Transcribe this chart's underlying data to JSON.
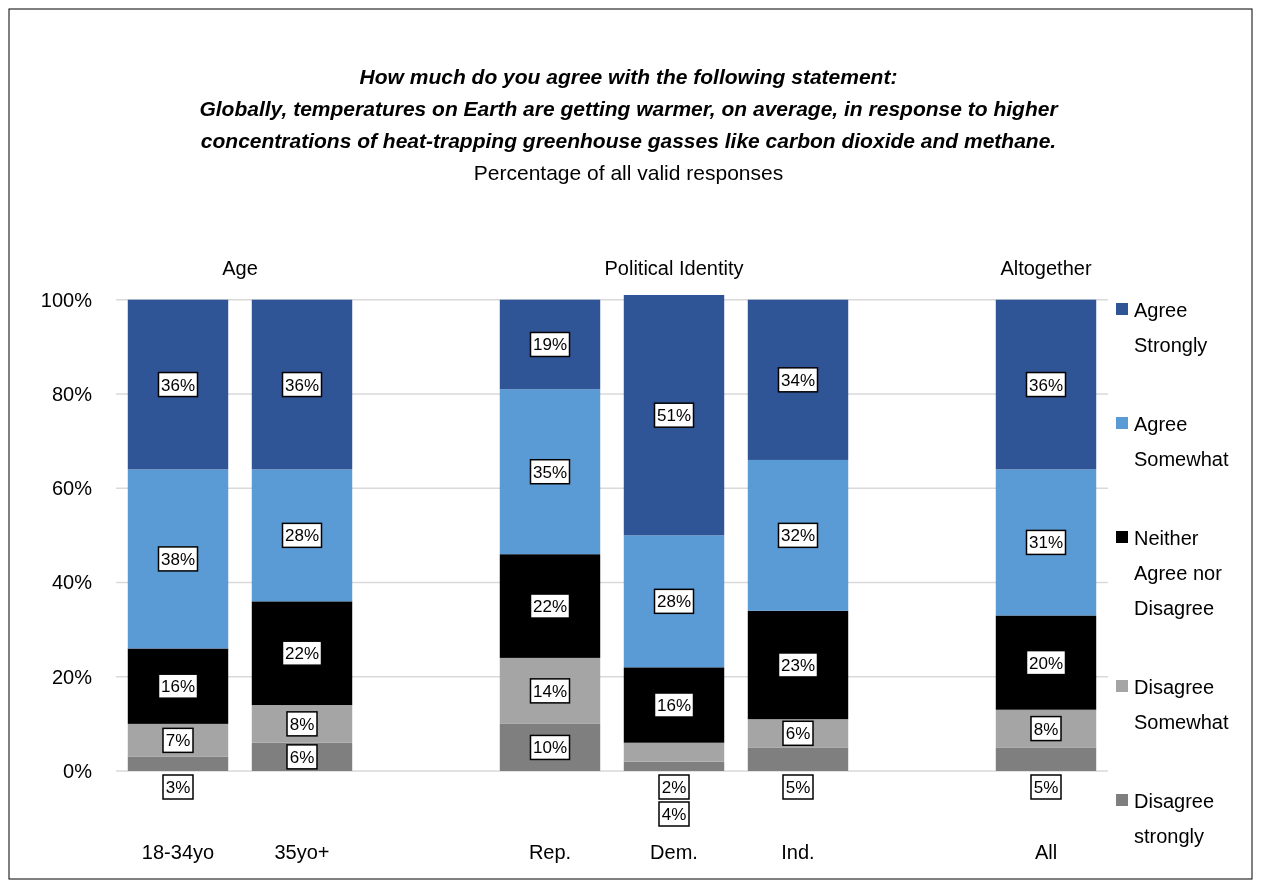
{
  "chart_data": {
    "type": "bar",
    "stacked": true,
    "title": "How much do you agree with the following statement:\nGlobally, temperatures on Earth are getting warmer, on average, in response to higher concentrations of heat-trapping greenhouse gasses like carbon dioxide and methane.",
    "subtitle": "Percentage of all valid responses",
    "annotations": [
      "Age",
      "Political Identity",
      "Altogether"
    ],
    "categories": [
      "18-34yo",
      "35yo+",
      null,
      "Rep.",
      "Dem.",
      "Ind.",
      null,
      "All"
    ],
    "series": [
      {
        "name": "Disagree strongly",
        "color": "#7f7f7f",
        "values": [
          3,
          6,
          null,
          10,
          2,
          5,
          null,
          5
        ],
        "value_labels": [
          "3%",
          "6%",
          null,
          "10%",
          "2%",
          "5%",
          null,
          "5%"
        ]
      },
      {
        "name": "Disagree Somewhat",
        "color": "#a5a5a5",
        "values": [
          7,
          8,
          null,
          14,
          4,
          6,
          null,
          8
        ],
        "value_labels": [
          "7%",
          "8%",
          null,
          "14%",
          "4%",
          "6%",
          null,
          "8%"
        ]
      },
      {
        "name": "Neither Agree nor Disagree",
        "color": "#000000",
        "values": [
          16,
          22,
          null,
          22,
          16,
          23,
          null,
          20
        ],
        "value_labels": [
          "16%",
          "22%",
          null,
          "22%",
          "16%",
          "23%",
          null,
          "20%"
        ]
      },
      {
        "name": "Agree Somewhat",
        "color": "#5b9bd5",
        "values": [
          38,
          28,
          null,
          35,
          28,
          32,
          null,
          31
        ],
        "value_labels": [
          "38%",
          "28%",
          null,
          "35%",
          "28%",
          "32%",
          null,
          "31%"
        ]
      },
      {
        "name": "Agree Strongly",
        "color": "#2f5597",
        "values": [
          36,
          36,
          null,
          19,
          51,
          34,
          null,
          36
        ],
        "value_labels": [
          "36%",
          "36%",
          null,
          "19%",
          "51%",
          "34%",
          null,
          "36%"
        ]
      }
    ],
    "ylim": [
      0,
      101
    ],
    "yticks": [
      {
        "value": 0,
        "label": "0%"
      },
      {
        "value": 20,
        "label": "20%"
      },
      {
        "value": 40,
        "label": "40%"
      },
      {
        "value": 60,
        "label": "60%"
      },
      {
        "value": 80,
        "label": "80%"
      },
      {
        "value": 100,
        "label": "100%"
      }
    ],
    "grid": "y",
    "legend": "right"
  }
}
